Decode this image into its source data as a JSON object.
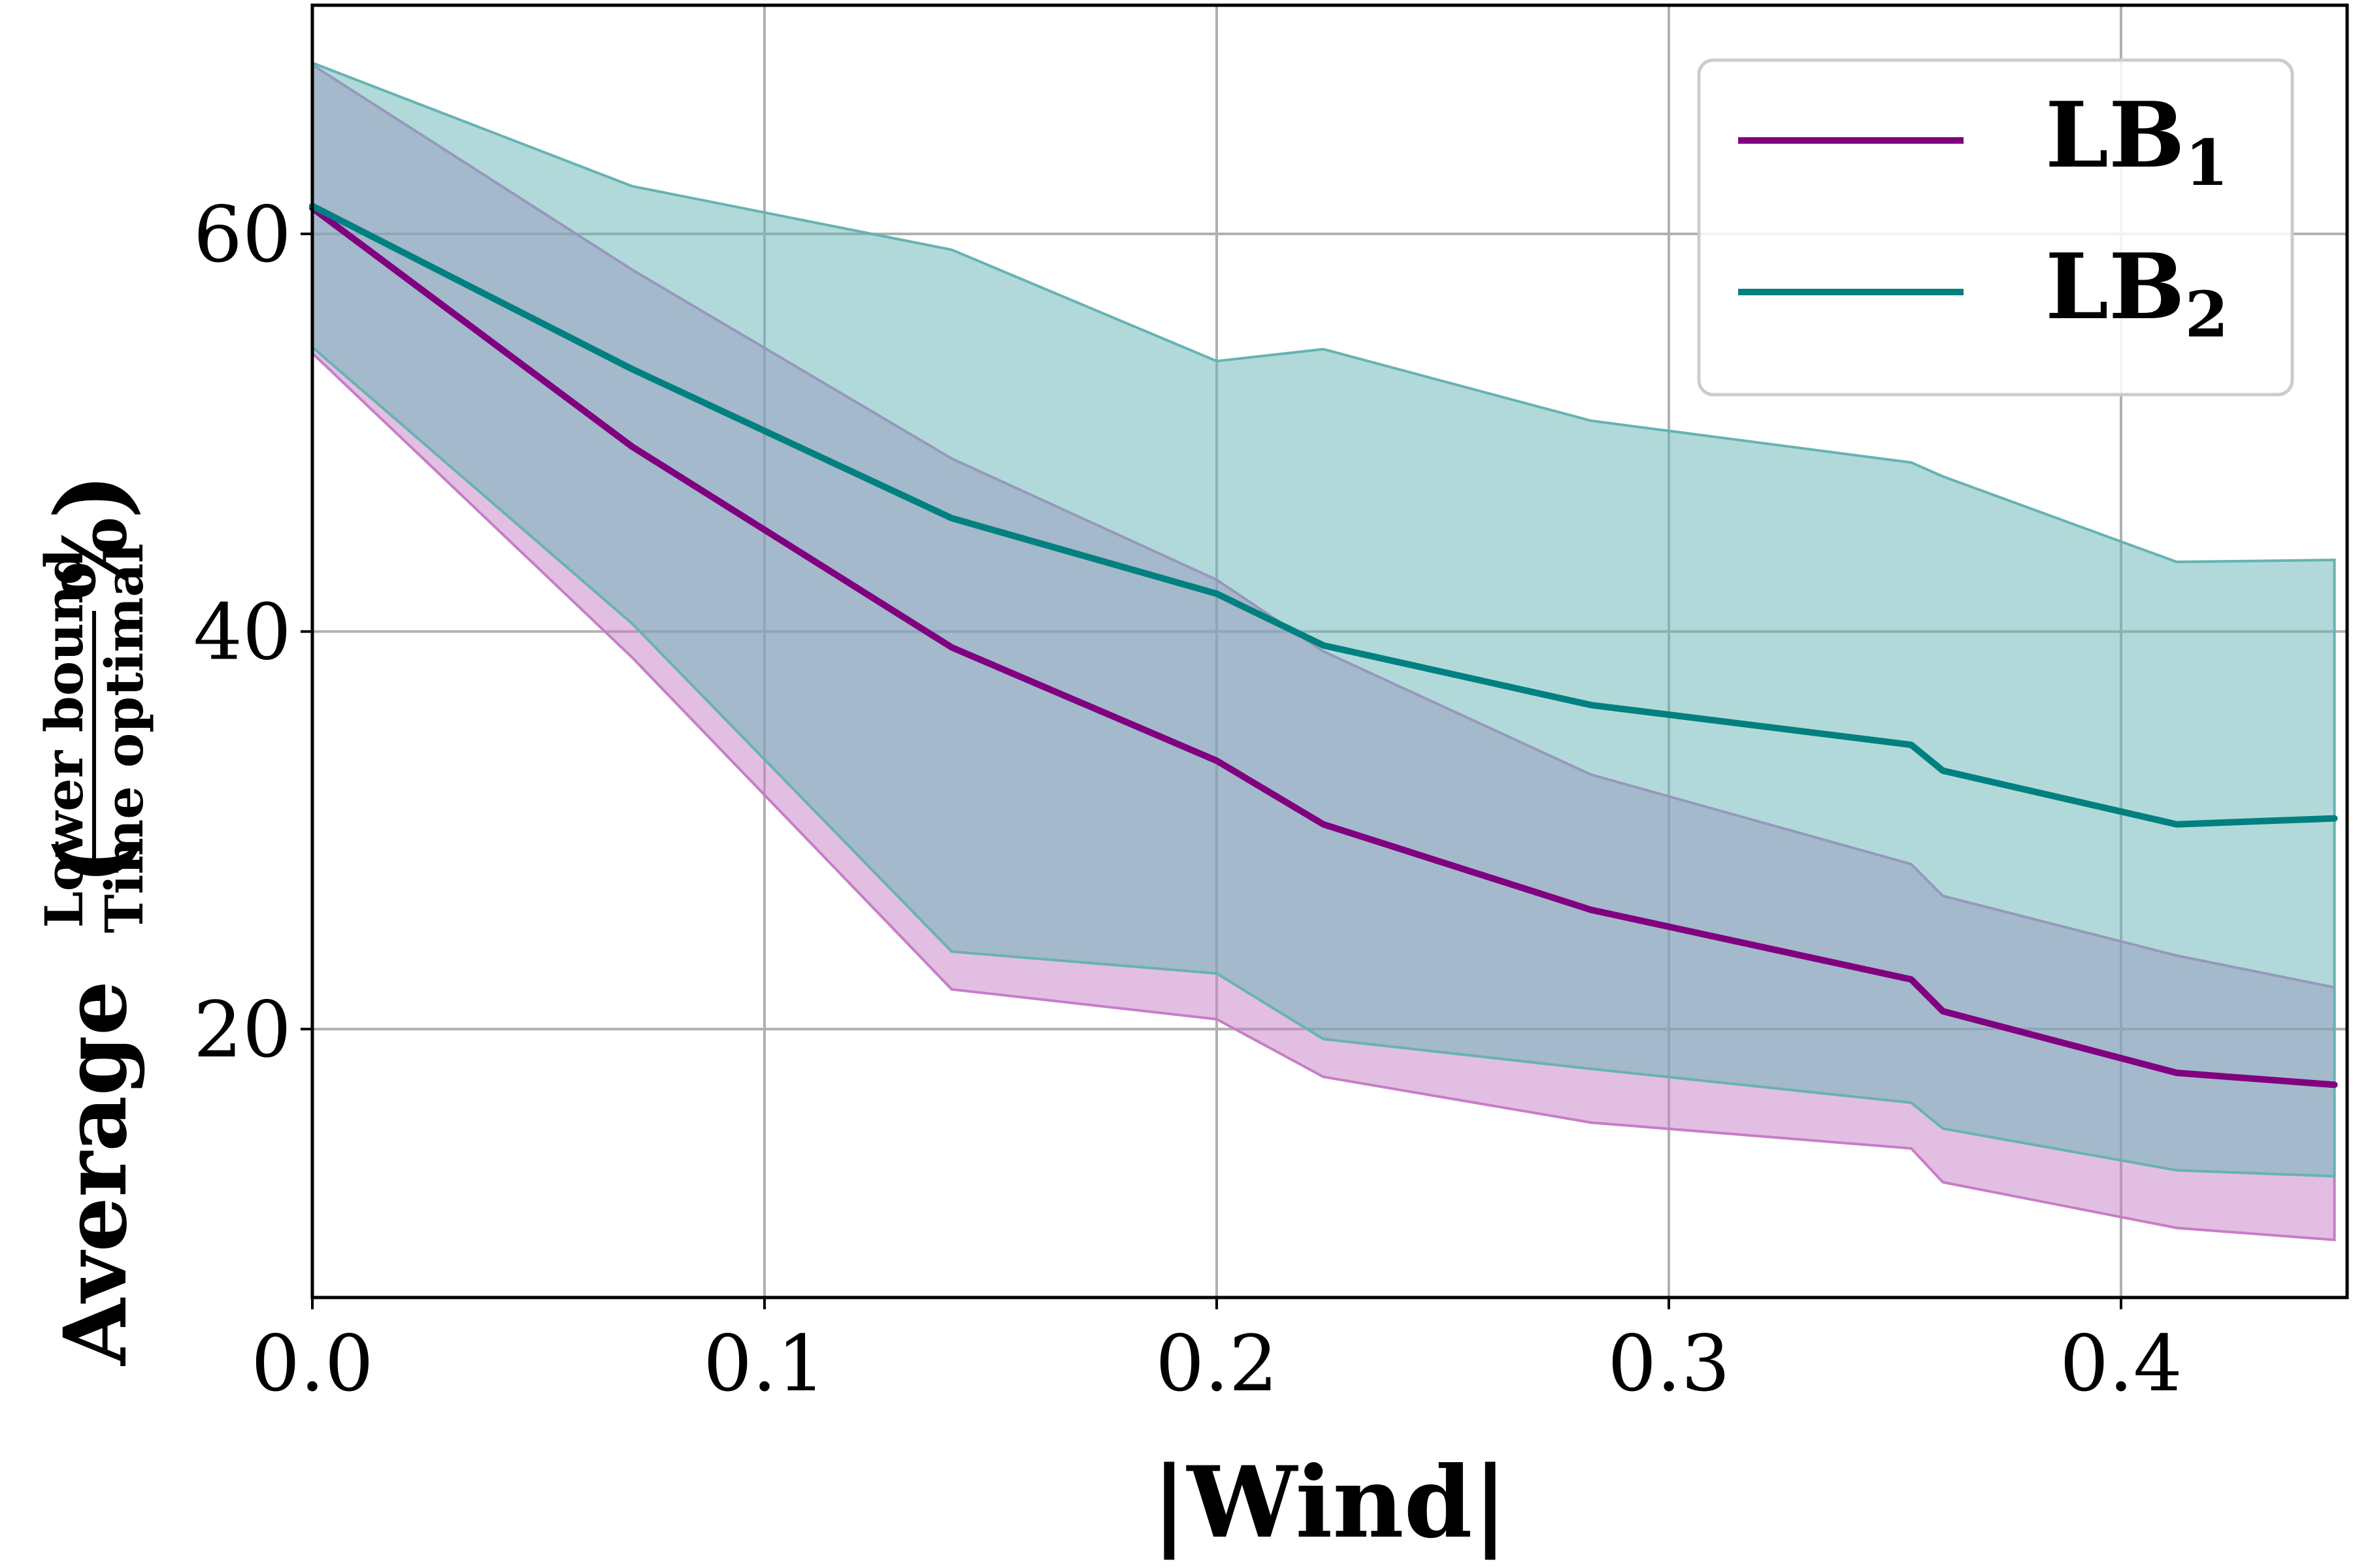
{
  "chart_data": {
    "type": "line",
    "title": "",
    "xlabel": "|Wind|",
    "ylabel": {
      "prefix": "Average",
      "numerator": "Lower bound",
      "denominator": "Time optimal",
      "suffix": "%"
    },
    "xlim": [
      0.0,
      0.45
    ],
    "ylim": [
      6.5,
      71.5
    ],
    "xticks": [
      0.0,
      0.1,
      0.2,
      0.3,
      0.4
    ],
    "xtick_labels": [
      "0.0",
      "0.1",
      "0.2",
      "0.3",
      "0.4"
    ],
    "yticks": [
      20,
      40,
      60
    ],
    "ytick_labels": [
      "20",
      "40",
      "60"
    ],
    "grid": true,
    "legend": "top-right",
    "x": [
      0.0,
      0.0707,
      0.1414,
      0.2,
      0.2236,
      0.2828,
      0.3536,
      0.3606,
      0.4123,
      0.4472
    ],
    "series": [
      {
        "name": "LB",
        "subscript": "1",
        "color": "#800080",
        "fill_color": "#c77dc7",
        "mean": [
          61.3,
          49.3,
          39.2,
          33.5,
          30.3,
          26.0,
          22.5,
          20.9,
          17.8,
          17.2
        ],
        "upper": [
          68.5,
          58.2,
          48.7,
          42.6,
          39.0,
          32.8,
          28.3,
          26.7,
          23.7,
          22.1
        ],
        "lower": [
          54.0,
          38.7,
          22.0,
          20.5,
          17.6,
          15.3,
          14.0,
          12.3,
          10.0,
          9.4
        ]
      },
      {
        "name": "LB",
        "subscript": "2",
        "color": "#008080",
        "fill_color": "#66b3b3",
        "mean": [
          61.4,
          53.2,
          45.7,
          41.9,
          39.3,
          36.3,
          34.3,
          33.0,
          30.3,
          30.6
        ],
        "upper": [
          68.6,
          62.4,
          59.2,
          53.6,
          54.2,
          50.6,
          48.5,
          47.8,
          43.5,
          43.6
        ],
        "lower": [
          54.3,
          40.4,
          23.9,
          22.8,
          19.5,
          18.0,
          16.3,
          15.0,
          12.9,
          12.6
        ]
      }
    ]
  }
}
